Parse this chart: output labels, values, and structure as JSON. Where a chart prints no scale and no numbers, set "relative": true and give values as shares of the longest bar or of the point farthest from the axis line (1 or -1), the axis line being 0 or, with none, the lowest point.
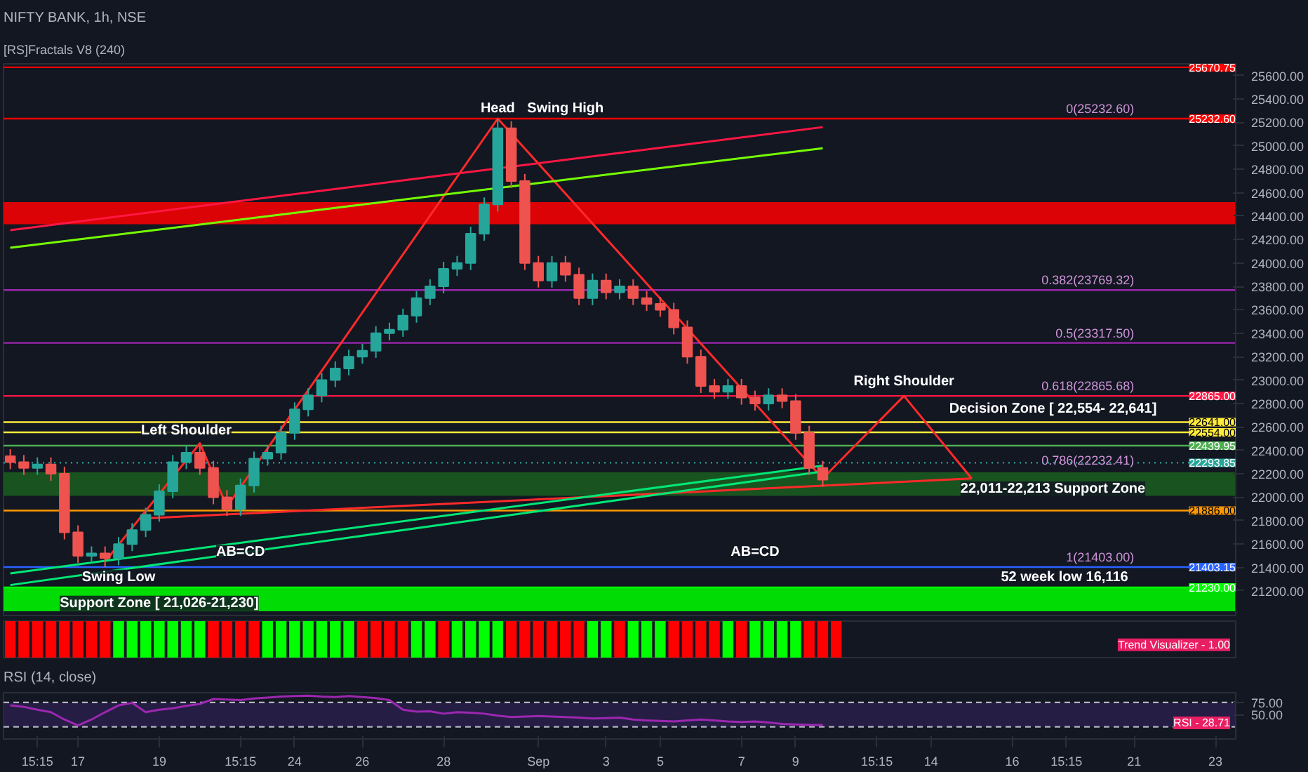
{
  "chart_data": [
    {
      "type": "candlestick",
      "title": "NIFTY BANK, 1h, NSE",
      "subtitle": "[RS]Fractals V8 (240)",
      "categories": [
        null,
        null,
        null,
        null,
        null,
        null,
        null,
        null,
        null,
        null,
        null,
        null,
        null,
        null,
        null,
        null,
        null,
        null,
        null,
        null,
        null,
        null,
        null,
        null,
        null,
        null,
        null,
        null,
        null,
        null,
        null,
        null,
        null,
        null,
        null,
        null,
        null,
        null,
        null,
        null,
        null,
        null,
        null,
        null,
        null,
        null,
        null,
        null,
        null,
        null,
        null,
        null,
        null,
        null,
        null,
        null,
        null,
        null,
        null,
        null,
        null,
        null,
        null,
        null,
        null,
        null,
        null,
        null,
        null,
        null,
        null,
        null,
        null,
        null,
        null,
        null,
        null,
        null,
        null,
        null,
        null,
        null,
        null,
        null,
        null,
        null,
        null,
        null,
        null,
        null,
        null
      ],
      "ohlc": [
        [
          22350,
          22410,
          22240,
          22300
        ],
        [
          22300,
          22360,
          22190,
          22250
        ],
        [
          22250,
          22340,
          22190,
          22280
        ],
        [
          22280,
          22340,
          22140,
          22200
        ],
        [
          22200,
          22260,
          21640,
          21700
        ],
        [
          21700,
          21760,
          21440,
          21500
        ],
        [
          21500,
          21580,
          21440,
          21520
        ],
        [
          21520,
          21580,
          21403,
          21480
        ],
        [
          21480,
          21660,
          21420,
          21600
        ],
        [
          21600,
          21780,
          21540,
          21720
        ],
        [
          21720,
          21910,
          21660,
          21850
        ],
        [
          21850,
          22110,
          21790,
          22050
        ],
        [
          22050,
          22360,
          21990,
          22300
        ],
        [
          22300,
          22440,
          22240,
          22380
        ],
        [
          22380,
          22440,
          22190,
          22250
        ],
        [
          22250,
          22310,
          21940,
          22000
        ],
        [
          22000,
          22060,
          21840,
          21900
        ],
        [
          21900,
          22160,
          21840,
          22100
        ],
        [
          22100,
          22390,
          22040,
          22330
        ],
        [
          22330,
          22440,
          22270,
          22380
        ],
        [
          22380,
          22610,
          22320,
          22550
        ],
        [
          22550,
          22810,
          22490,
          22750
        ],
        [
          22750,
          22930,
          22690,
          22870
        ],
        [
          22870,
          23060,
          22810,
          23000
        ],
        [
          23000,
          23160,
          22940,
          23100
        ],
        [
          23100,
          23260,
          23040,
          23200
        ],
        [
          23200,
          23310,
          23140,
          23250
        ],
        [
          23250,
          23460,
          23190,
          23400
        ],
        [
          23400,
          23490,
          23340,
          23430
        ],
        [
          23430,
          23610,
          23370,
          23550
        ],
        [
          23550,
          23760,
          23490,
          23700
        ],
        [
          23700,
          23860,
          23640,
          23800
        ],
        [
          23800,
          24010,
          23740,
          23950
        ],
        [
          23950,
          24060,
          23890,
          24000
        ],
        [
          24000,
          24310,
          23940,
          24250
        ],
        [
          24250,
          24560,
          24190,
          24500
        ],
        [
          24500,
          25232.6,
          24440,
          25150
        ],
        [
          25150,
          25210,
          24640,
          24700
        ],
        [
          24700,
          24760,
          23940,
          24000
        ],
        [
          24000,
          24060,
          23790,
          23850
        ],
        [
          23850,
          24060,
          23790,
          24000
        ],
        [
          24000,
          24060,
          23840,
          23900
        ],
        [
          23900,
          23960,
          23640,
          23700
        ],
        [
          23700,
          23910,
          23640,
          23850
        ],
        [
          23850,
          23910,
          23690,
          23750
        ],
        [
          23750,
          23860,
          23690,
          23800
        ],
        [
          23800,
          23860,
          23640,
          23700
        ],
        [
          23700,
          23760,
          23590,
          23650
        ],
        [
          23650,
          23710,
          23540,
          23600
        ],
        [
          23600,
          23660,
          23390,
          23450
        ],
        [
          23450,
          23510,
          23140,
          23200
        ],
        [
          23200,
          23260,
          22890,
          22950
        ],
        [
          22950,
          23010,
          22840,
          22900
        ],
        [
          22900,
          23010,
          22840,
          22950
        ],
        [
          22950,
          23010,
          22790,
          22850
        ],
        [
          22850,
          22910,
          22740,
          22800
        ],
        [
          22800,
          22930,
          22740,
          22870
        ],
        [
          22870,
          22930,
          22760,
          22820
        ],
        [
          22820,
          22880,
          22490,
          22550
        ],
        [
          22550,
          22610,
          22190,
          22250
        ],
        [
          22250,
          22310,
          22090,
          22150
        ],
        null,
        null,
        null,
        null,
        null,
        null,
        null,
        null,
        null,
        null,
        null,
        null,
        null,
        null,
        null,
        null,
        null,
        null,
        null,
        null,
        null,
        null,
        null,
        null,
        null,
        null,
        null,
        null,
        null,
        null
      ],
      "series": [
        {
          "type": "line",
          "color": "#ff2a2a",
          "values": [
            null,
            null,
            null,
            null,
            null,
            null,
            null,
            21450,
            null,
            null,
            null,
            null,
            null,
            null,
            22460,
            null,
            21920,
            null,
            null,
            null,
            null,
            null,
            null,
            null,
            null,
            null,
            null,
            null,
            null,
            null,
            null,
            null,
            null,
            null,
            null,
            null,
            25232.6,
            null,
            null,
            null,
            null,
            null,
            null,
            null,
            null,
            null,
            null,
            null,
            null,
            null,
            null,
            null,
            null,
            null,
            null,
            null,
            null,
            null,
            null,
            null,
            22160,
            null,
            null,
            null,
            null,
            null,
            22865,
            null,
            null,
            null,
            null,
            22160,
            null,
            null,
            null,
            null,
            null,
            null,
            null,
            null,
            null,
            null,
            null,
            null,
            null,
            null,
            null,
            null,
            null,
            null,
            null
          ]
        },
        {
          "type": "line",
          "color": "#ff2a2a",
          "values": [
            null,
            null,
            null,
            null,
            null,
            null,
            null,
            null,
            null,
            null,
            21820,
            null,
            null,
            null,
            null,
            null,
            null,
            null,
            null,
            null,
            null,
            null,
            null,
            null,
            null,
            null,
            null,
            null,
            null,
            null,
            null,
            null,
            null,
            null,
            null,
            null,
            null,
            null,
            null,
            null,
            null,
            null,
            null,
            null,
            null,
            null,
            null,
            null,
            null,
            null,
            null,
            null,
            null,
            null,
            null,
            null,
            null,
            null,
            null,
            null,
            null,
            null,
            null,
            null,
            null,
            null,
            null,
            null,
            null,
            null,
            null,
            22160,
            null,
            null,
            null,
            null,
            null,
            null,
            null,
            null,
            null,
            null,
            null,
            null,
            null,
            null,
            null,
            null,
            null,
            null,
            null
          ]
        },
        {
          "type": "line",
          "color": "#00e676",
          "values": [
            21250,
            null,
            null,
            null,
            null,
            null,
            null,
            null,
            null,
            null,
            null,
            null,
            null,
            null,
            null,
            null,
            null,
            null,
            null,
            null,
            null,
            null,
            null,
            null,
            null,
            null,
            null,
            null,
            null,
            null,
            null,
            null,
            null,
            null,
            null,
            null,
            null,
            null,
            null,
            null,
            null,
            null,
            null,
            null,
            null,
            null,
            null,
            null,
            null,
            null,
            null,
            null,
            null,
            null,
            null,
            null,
            null,
            null,
            null,
            null,
            22220,
            null,
            null,
            null,
            null,
            null,
            null,
            null,
            null,
            null,
            null,
            null,
            null,
            null,
            null,
            null,
            null,
            null,
            null,
            null,
            null,
            null,
            null,
            null,
            null,
            null,
            null,
            null,
            null,
            null,
            null
          ]
        },
        {
          "type": "line",
          "color": "#00e676",
          "values": [
            21350,
            null,
            null,
            null,
            null,
            null,
            null,
            null,
            null,
            null,
            null,
            null,
            null,
            null,
            null,
            null,
            null,
            null,
            null,
            null,
            null,
            null,
            null,
            null,
            null,
            null,
            null,
            null,
            null,
            null,
            null,
            null,
            null,
            null,
            null,
            null,
            null,
            null,
            null,
            null,
            null,
            null,
            null,
            null,
            null,
            null,
            null,
            null,
            null,
            null,
            null,
            null,
            null,
            null,
            null,
            null,
            null,
            null,
            null,
            null,
            22270,
            null,
            null,
            null,
            null,
            null,
            null,
            null,
            null,
            null,
            null,
            null,
            null,
            null,
            null,
            null,
            null,
            null,
            null,
            null,
            null,
            null,
            null,
            null,
            null,
            null,
            null,
            null,
            null,
            null,
            null
          ]
        },
        {
          "type": "line",
          "color": "#ff1744",
          "values": [
            24280,
            null,
            null,
            null,
            null,
            null,
            null,
            null,
            null,
            null,
            null,
            null,
            null,
            null,
            null,
            null,
            null,
            null,
            null,
            null,
            null,
            null,
            null,
            null,
            null,
            null,
            null,
            null,
            null,
            null,
            null,
            null,
            null,
            null,
            null,
            null,
            null,
            null,
            null,
            null,
            null,
            null,
            null,
            null,
            null,
            null,
            null,
            null,
            null,
            null,
            null,
            null,
            null,
            null,
            null,
            null,
            null,
            null,
            null,
            null,
            25160,
            null,
            null,
            null,
            null,
            null,
            null,
            null,
            null,
            null,
            null,
            null,
            null,
            null,
            null,
            null,
            null,
            null,
            null,
            null,
            null,
            null,
            null,
            null,
            null,
            null,
            null,
            null,
            null,
            null,
            null
          ]
        },
        {
          "type": "line",
          "color": "#76ff03",
          "values": [
            24130,
            null,
            null,
            null,
            null,
            null,
            null,
            null,
            null,
            null,
            null,
            null,
            null,
            null,
            null,
            null,
            null,
            null,
            null,
            null,
            null,
            null,
            null,
            null,
            null,
            null,
            null,
            null,
            null,
            null,
            null,
            null,
            null,
            null,
            null,
            null,
            null,
            null,
            null,
            null,
            null,
            null,
            null,
            null,
            null,
            null,
            null,
            null,
            null,
            null,
            null,
            null,
            null,
            null,
            null,
            null,
            null,
            null,
            null,
            null,
            24980,
            null,
            null,
            null,
            null,
            null,
            null,
            null,
            null,
            null,
            null,
            null,
            null,
            null,
            null,
            null,
            null,
            null,
            null,
            null,
            null,
            null,
            null,
            null,
            null,
            null,
            null,
            null,
            null,
            null,
            null
          ]
        }
      ],
      "ylim": [
        20990,
        25700
      ],
      "yticks": [
        {
          "value": 21200,
          "label": "21200.00"
        },
        {
          "value": 21400,
          "label": "21400.00"
        },
        {
          "value": 21600,
          "label": "21600.00"
        },
        {
          "value": 21800,
          "label": "21800.00"
        },
        {
          "value": 22000,
          "label": "22000.00"
        },
        {
          "value": 22200,
          "label": "22200.00"
        },
        {
          "value": 22400,
          "label": "22400.00"
        },
        {
          "value": 22600,
          "label": "22600.00"
        },
        {
          "value": 22800,
          "label": "22800.00"
        },
        {
          "value": 23000,
          "label": "23000.00"
        },
        {
          "value": 23200,
          "label": "23200.00"
        },
        {
          "value": 23400,
          "label": "23400.00"
        },
        {
          "value": 23600,
          "label": "23600.00"
        },
        {
          "value": 23800,
          "label": "23800.00"
        },
        {
          "value": 24000,
          "label": "24000.00"
        },
        {
          "value": 24200,
          "label": "24200.00"
        },
        {
          "value": 24400,
          "label": "24400.00"
        },
        {
          "value": 24600,
          "label": "24600.00"
        },
        {
          "value": 24800,
          "label": "24800.00"
        },
        {
          "value": 25000,
          "label": "25000.00"
        },
        {
          "value": 25200,
          "label": "25200.00"
        },
        {
          "value": 25400,
          "label": "25400.00"
        },
        {
          "value": 25600,
          "label": "25600.00"
        }
      ],
      "tick_labels": "y",
      "grid": false,
      "marker": "none",
      "line_style": "solid",
      "ref_lines": [
        {
          "axis": "y",
          "value": 25670.75,
          "label": "25670.75",
          "color": "#ff0000"
        },
        {
          "axis": "y",
          "value": 25232.6,
          "label": "25232.60",
          "color": "#ff0000"
        },
        {
          "axis": "y",
          "value": 23769.32,
          "color": "#9c27b0"
        },
        {
          "axis": "y",
          "value": 23317.5,
          "color": "#9c27b0"
        },
        {
          "axis": "y",
          "value": 22865,
          "label": "22865.00",
          "color": "#ff1744"
        },
        {
          "axis": "y",
          "value": 22641,
          "label": "22641.00",
          "color": "#ffeb3b"
        },
        {
          "axis": "y",
          "value": 22554,
          "label": "22554.00",
          "color": "#ffeb3b"
        },
        {
          "axis": "y",
          "value": 22439.95,
          "label": "22439.95",
          "color": "#4caf50"
        },
        {
          "axis": "y",
          "value": 22293.85,
          "label": "22293.85",
          "color": "#26a69a",
          "line_style": "dotted"
        },
        {
          "axis": "y",
          "value": 21886,
          "label": "21886.00",
          "color": "#ff9800"
        },
        {
          "axis": "y",
          "value": 21403.15,
          "label": "21403.15",
          "color": "#2962ff"
        },
        {
          "axis": "y",
          "value": 21230,
          "label": "21230.00",
          "color": "#00ff00"
        }
      ],
      "bands": [
        {
          "axis": "y",
          "from": 24330,
          "to": 24520,
          "color": "#ff0000"
        },
        {
          "axis": "y",
          "from": 22011,
          "to": 22213,
          "color": "#1b5e20"
        },
        {
          "axis": "y",
          "from": 21026,
          "to": 21230,
          "color": "#00ff00"
        }
      ],
      "annotations": [
        "Head",
        "Swing High",
        "Left Shoulder",
        "Right Shoulder",
        "Swing Low",
        "Decision Zone [ 22,554- 22,641]",
        "22,011-22,213 Support Zone",
        "Support Zone [ 21,026-21,230]",
        "52 week  low 16,116",
        "AB=CD",
        "AB=CD",
        {
          "text": "0(25232.60)",
          "y": 25232.6
        },
        {
          "text": "0.382(23769.32)",
          "y": 23769.32
        },
        {
          "text": "0.5(23317.50)",
          "y": 23317.5
        },
        {
          "text": "0.618(22865.68)",
          "y": 22865.68
        },
        {
          "text": "0.786(22232.41)",
          "y": 22232.41
        },
        {
          "text": "1(21403.00)",
          "y": 21403
        }
      ]
    },
    {
      "type": "bar",
      "relative": true,
      "tick_labels": false,
      "categories": [
        null,
        null,
        null,
        null,
        null,
        null,
        null,
        null,
        null,
        null,
        null,
        null,
        null,
        null,
        null,
        null,
        null,
        null,
        null,
        null,
        null,
        null,
        null,
        null,
        null,
        null,
        null,
        null,
        null,
        null,
        null,
        null,
        null,
        null,
        null,
        null,
        null,
        null,
        null,
        null,
        null,
        null,
        null,
        null,
        null,
        null,
        null,
        null,
        null,
        null,
        null,
        null,
        null,
        null,
        null,
        null,
        null,
        null,
        null,
        null,
        null,
        null,
        null,
        null,
        null,
        null,
        null,
        null,
        null,
        null,
        null,
        null,
        null,
        null,
        null,
        null,
        null,
        null,
        null,
        null,
        null,
        null,
        null,
        null,
        null,
        null,
        null,
        null,
        null,
        null,
        null
      ],
      "values": [
        1,
        1,
        1,
        1,
        1,
        1,
        1,
        1,
        1,
        1,
        1,
        1,
        1,
        1,
        1,
        1,
        1,
        1,
        1,
        1,
        1,
        1,
        1,
        1,
        1,
        1,
        1,
        1,
        1,
        1,
        1,
        1,
        1,
        1,
        1,
        1,
        1,
        1,
        1,
        1,
        1,
        1,
        1,
        1,
        1,
        1,
        1,
        1,
        1,
        1,
        1,
        1,
        1,
        1,
        1,
        1,
        1,
        1,
        1,
        1,
        1,
        1,
        null,
        null,
        null,
        null,
        null,
        null,
        null,
        null,
        null,
        null,
        null,
        null,
        null,
        null,
        null,
        null,
        null,
        null,
        null,
        null,
        null,
        null,
        null,
        null,
        null,
        null,
        null,
        null,
        null
      ],
      "colors": [
        "#ff0000",
        "#ff0000",
        "#ff0000",
        "#ff0000",
        "#ff0000",
        "#ff0000",
        "#ff0000",
        "#ff0000",
        "#00ff00",
        "#00ff00",
        "#00ff00",
        "#00ff00",
        "#00ff00",
        "#00ff00",
        "#00ff00",
        "#ff0000",
        "#ff0000",
        "#ff0000",
        "#ff0000",
        "#00ff00",
        "#00ff00",
        "#00ff00",
        "#00ff00",
        "#00ff00",
        "#00ff00",
        "#00ff00",
        "#ff0000",
        "#ff0000",
        "#ff0000",
        "#ff0000",
        "#00ff00",
        "#00ff00",
        "#ff0000",
        "#00ff00",
        "#00ff00",
        "#00ff00",
        "#00ff00",
        "#ff0000",
        "#ff0000",
        "#ff0000",
        "#ff0000",
        "#ff0000",
        "#ff0000",
        "#00ff00",
        "#00ff00",
        "#ff0000",
        "#00ff00",
        "#00ff00",
        "#00ff00",
        "#ff0000",
        "#ff0000",
        "#ff0000",
        "#ff0000",
        "#00ff00",
        "#ff0000",
        "#00ff00",
        "#00ff00",
        "#00ff00",
        "#00ff00",
        "#ff0000",
        "#ff0000",
        "#ff0000",
        null,
        null,
        null,
        null,
        null,
        null,
        null,
        null,
        null,
        null,
        null,
        null,
        null,
        null,
        null,
        null,
        null,
        null,
        null,
        null,
        null,
        null,
        null,
        null,
        null,
        null,
        null,
        null,
        null
      ],
      "annotations": [
        "Trend Visualizer - 1.00"
      ]
    },
    {
      "type": "line",
      "title": "RSI (14, close)",
      "categories": [
        null,
        null,
        "15:15",
        null,
        null,
        "17",
        null,
        null,
        null,
        null,
        null,
        "19",
        null,
        null,
        null,
        null,
        null,
        "15:15",
        null,
        null,
        null,
        "24",
        null,
        null,
        null,
        null,
        "26",
        null,
        null,
        null,
        null,
        null,
        "28",
        null,
        null,
        null,
        null,
        null,
        null,
        "Sep",
        null,
        null,
        null,
        null,
        "3",
        null,
        null,
        null,
        "5",
        null,
        null,
        null,
        null,
        null,
        "7",
        null,
        null,
        null,
        "9",
        null,
        null,
        null,
        null,
        null,
        "15:15",
        null,
        null,
        null,
        "14",
        null,
        null,
        null,
        null,
        null,
        "16",
        null,
        null,
        null,
        "15:15",
        null,
        null,
        null,
        null,
        "21",
        null,
        null,
        null,
        null,
        null,
        "23",
        null
      ],
      "values": [
        69,
        66,
        60,
        55,
        40,
        28,
        40,
        55,
        69,
        74,
        55,
        60,
        63,
        68,
        72,
        82,
        81,
        80,
        83,
        85,
        87,
        88,
        89,
        87,
        86,
        88,
        86,
        84,
        80,
        60,
        56,
        57,
        52,
        55,
        54,
        52,
        48,
        45,
        46,
        47,
        46,
        45,
        44,
        42,
        43,
        44,
        40,
        38,
        37,
        36,
        38,
        40,
        38,
        36,
        35,
        36,
        34,
        31,
        30,
        29,
        28.71,
        null,
        null,
        null,
        null,
        null,
        null,
        null,
        null,
        null,
        null,
        null,
        null,
        null,
        null,
        null,
        null,
        null,
        null,
        null,
        null,
        null,
        null,
        null,
        null,
        null,
        null,
        null,
        null,
        null,
        null
      ],
      "color": "#9c27b0",
      "ylim": [
        0,
        95
      ],
      "yticks": [
        {
          "value": 50,
          "label": "50.00"
        },
        {
          "value": 75,
          "label": "75.00"
        }
      ],
      "grid": false,
      "marker": "none",
      "line_style": "solid",
      "ref_lines": [
        {
          "axis": "y",
          "value": 75,
          "color": "#b2b5be",
          "line_style": "dashed"
        },
        {
          "axis": "y",
          "value": 25,
          "color": "#b2b5be",
          "line_style": "dashed"
        }
      ],
      "bands": [
        {
          "axis": "y",
          "from": 25,
          "to": 75,
          "color": "#2a1f4a"
        }
      ],
      "annotations": [
        "RSI - 28.71"
      ]
    }
  ]
}
